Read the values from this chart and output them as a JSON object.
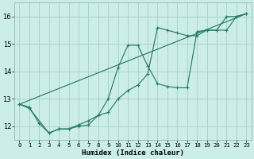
{
  "xlabel": "Humidex (Indice chaleur)",
  "bg_color": "#cceee8",
  "grid_color": "#aad4cc",
  "line_color": "#2a7a6a",
  "xlim": [
    -0.5,
    23.5
  ],
  "ylim": [
    11.5,
    16.5
  ],
  "yticks": [
    12,
    13,
    14,
    15,
    16
  ],
  "xticks": [
    0,
    1,
    2,
    3,
    4,
    5,
    6,
    7,
    8,
    9,
    10,
    11,
    12,
    13,
    14,
    15,
    16,
    17,
    18,
    19,
    20,
    21,
    22,
    23
  ],
  "series1_x": [
    0,
    1,
    2,
    3,
    4,
    5,
    6,
    7,
    8,
    9,
    10,
    11,
    12,
    13,
    14,
    15,
    16,
    17,
    18,
    19,
    20,
    21,
    22,
    23
  ],
  "series1_y": [
    12.8,
    12.7,
    12.1,
    11.75,
    11.9,
    11.9,
    12.0,
    12.05,
    12.4,
    12.5,
    13.0,
    13.3,
    13.5,
    13.9,
    15.6,
    15.5,
    15.4,
    15.3,
    15.3,
    15.5,
    15.5,
    16.0,
    16.0,
    16.1
  ],
  "series2_x": [
    0,
    1,
    3,
    4,
    5,
    6,
    7,
    8,
    9,
    10,
    11,
    12,
    13,
    14,
    15,
    16,
    17,
    18,
    19,
    20,
    21,
    22,
    23
  ],
  "series2_y": [
    12.8,
    12.65,
    11.75,
    11.9,
    11.9,
    12.05,
    12.2,
    12.4,
    13.0,
    14.15,
    14.95,
    14.95,
    14.2,
    13.55,
    13.45,
    13.4,
    13.4,
    15.45,
    15.5,
    15.5,
    15.5,
    16.0,
    16.1
  ],
  "series3_x": [
    0,
    23
  ],
  "series3_y": [
    12.8,
    16.1
  ]
}
